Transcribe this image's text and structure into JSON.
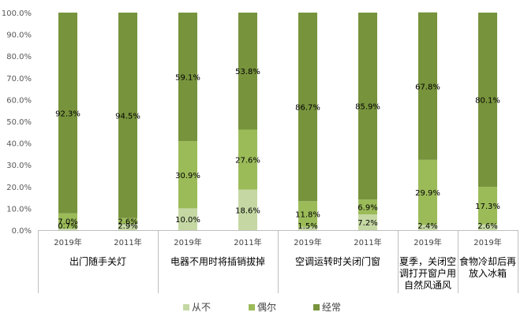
{
  "chart_data": {
    "type": "bar",
    "stacked": true,
    "ylim": [
      0,
      100
    ],
    "ytick_step": 10,
    "ytick_labels": [
      "0.0%",
      "10.0%",
      "20.0%",
      "30.0%",
      "40.0%",
      "50.0%",
      "60.0%",
      "70.0%",
      "80.0%",
      "90.0%",
      "100.0%"
    ],
    "grid": false,
    "legend_position": "bottom",
    "groups": [
      {
        "label_lines": [
          "出门随手关灯"
        ],
        "bars": [
          "2019年",
          "2011年"
        ]
      },
      {
        "label_lines": [
          "电器不用时将插销拔掉"
        ],
        "bars": [
          "2019年",
          "2011年"
        ]
      },
      {
        "label_lines": [
          "空调运转时关闭门窗"
        ],
        "bars": [
          "2019年",
          "2011年"
        ]
      },
      {
        "label_lines": [
          "夏季，关闭空",
          "调打开窗户用",
          "自然风通风"
        ],
        "bars": [
          "2019年"
        ]
      },
      {
        "label_lines": [
          "食物冷却后再",
          "放入冰箱"
        ],
        "bars": [
          "2019年"
        ]
      }
    ],
    "series": [
      {
        "name": "从不",
        "color": "#c5d8a4",
        "values": [
          0.7,
          2.9,
          10.0,
          18.6,
          1.5,
          7.2,
          2.4,
          2.6
        ],
        "labels": [
          "0.7%",
          "2.9%",
          "10.0%",
          "18.6%",
          "1.5%",
          "7.2%",
          "2.4%",
          "2.6%"
        ]
      },
      {
        "name": "偶尔",
        "color": "#9bbb59",
        "values": [
          7.0,
          2.6,
          30.9,
          27.6,
          11.8,
          6.9,
          29.9,
          17.3
        ],
        "labels": [
          "7.0%",
          "2.6%",
          "30.9%",
          "27.6%",
          "11.8%",
          "6.9%",
          "29.9%",
          "17.3%"
        ]
      },
      {
        "name": "经常",
        "color": "#77933c",
        "values": [
          92.3,
          94.5,
          59.1,
          53.8,
          86.7,
          85.9,
          67.8,
          80.1
        ],
        "labels": [
          "92.3%",
          "94.5%",
          "59.1%",
          "53.8%",
          "86.7%",
          "85.9%",
          "67.8%",
          "80.1%"
        ]
      }
    ]
  }
}
